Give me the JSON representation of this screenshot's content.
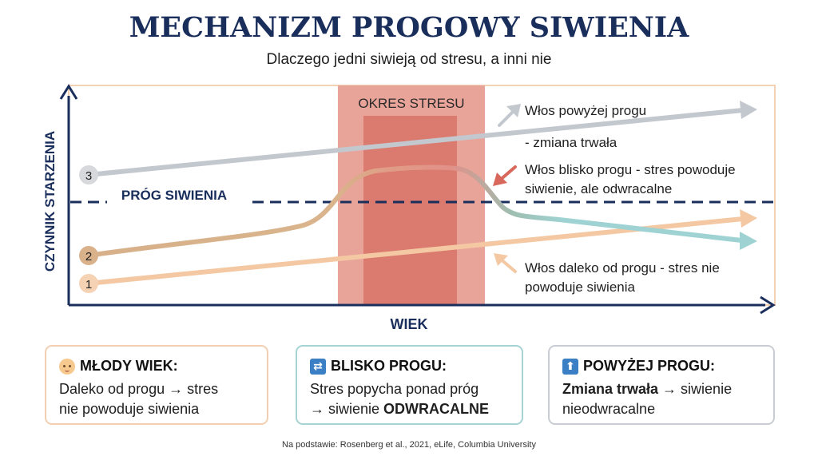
{
  "title": "MECHANIZM PROGOWY SIWIENIA",
  "subtitle": "Dlaczego jedni siwieją od stresu, a inni nie",
  "diagram": {
    "y_axis_label": "CZYNNIK STARZENIA",
    "x_axis_label": "WIEK",
    "threshold_label": "PRÓG SIWIENIA",
    "stress_label": "OKRES STRESU",
    "lines": [
      {
        "marker": "1",
        "color": "#f3c8a3",
        "annotation": [
          "Włos daleko od progu - stres nie",
          "powoduje siwienia"
        ]
      },
      {
        "marker": "2",
        "color": "#d3b28a",
        "annotation": [
          "Włos blisko progu - stres powoduje",
          "siwienie, ale odwracalne"
        ]
      },
      {
        "marker": "3",
        "color": "#c3c7ce",
        "annotation": [
          "Włos powyżej progu",
          "- zmiana trwała"
        ]
      }
    ],
    "colors": {
      "navy": "#1a2e5c",
      "stress_outer": "#e6a198",
      "stress_inner": "#d9685c",
      "frame": "#f3d1b4",
      "teal": "#9fd3d3"
    }
  },
  "cards": [
    {
      "icon": "baby-icon",
      "title": "MŁODY WIEK:",
      "line1": "Daleko od progu → stres",
      "line2": "nie powoduje siwienia"
    },
    {
      "icon": "repeat-icon",
      "title": "BLISKO PROGU:",
      "line1": "Stres popycha ponad próg",
      "line2_prefix": "→ siwienie ",
      "line2_bold": "ODWRACALNE"
    },
    {
      "icon": "up-arrow-icon",
      "title": "POWYŻEJ PROGU:",
      "line1_bold": "Zmiana trwała",
      "line1_rest": " → siwienie",
      "line2": "nieodwracalne"
    }
  ],
  "footer": "Na podstawie: Rosenberg et al., 2021, eLife, Columbia University"
}
